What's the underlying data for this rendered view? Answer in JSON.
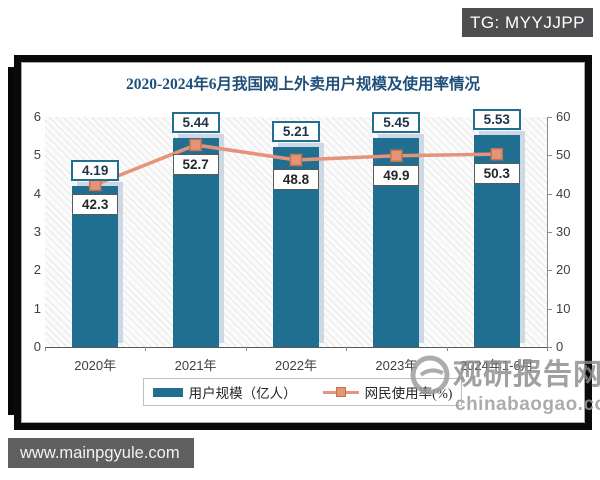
{
  "badges": {
    "tg": "TG: MYYJJPP",
    "url": "www.mainpgyule.com"
  },
  "watermark": {
    "name": "观研报告网",
    "domain": "chinabaogao.com"
  },
  "chart_data": {
    "type": "bar",
    "title": "2020-2024年6月我国网上外卖用户规模及使用率情况",
    "categories": [
      "2020年",
      "2021年",
      "2022年",
      "2023年",
      "2024年1-6月"
    ],
    "series": [
      {
        "name": "用户规模（亿人）",
        "style": "bar",
        "axis": "left",
        "values": [
          4.19,
          5.44,
          5.21,
          5.45,
          5.53
        ],
        "labels": [
          "4.19",
          "5.44",
          "5.21",
          "5.45",
          "5.53"
        ],
        "color": "#216f90"
      },
      {
        "name": "网民使用率(%)",
        "style": "line",
        "axis": "right",
        "values": [
          42.3,
          52.7,
          48.8,
          49.9,
          50.3
        ],
        "labels": [
          "42.3",
          "52.7",
          "48.8",
          "49.9",
          "50.3"
        ],
        "color": "#e5947a"
      }
    ],
    "left_axis": {
      "min": 0,
      "max": 6,
      "ticks": [
        "0",
        "1",
        "2",
        "3",
        "4",
        "5",
        "6"
      ]
    },
    "right_axis": {
      "min": 0,
      "max": 60,
      "ticks": [
        "0",
        "10",
        "20",
        "30",
        "40",
        "50",
        "60"
      ]
    },
    "grid": false,
    "legend_position": "bottom",
    "plot_background": "diagonal-hatch"
  }
}
